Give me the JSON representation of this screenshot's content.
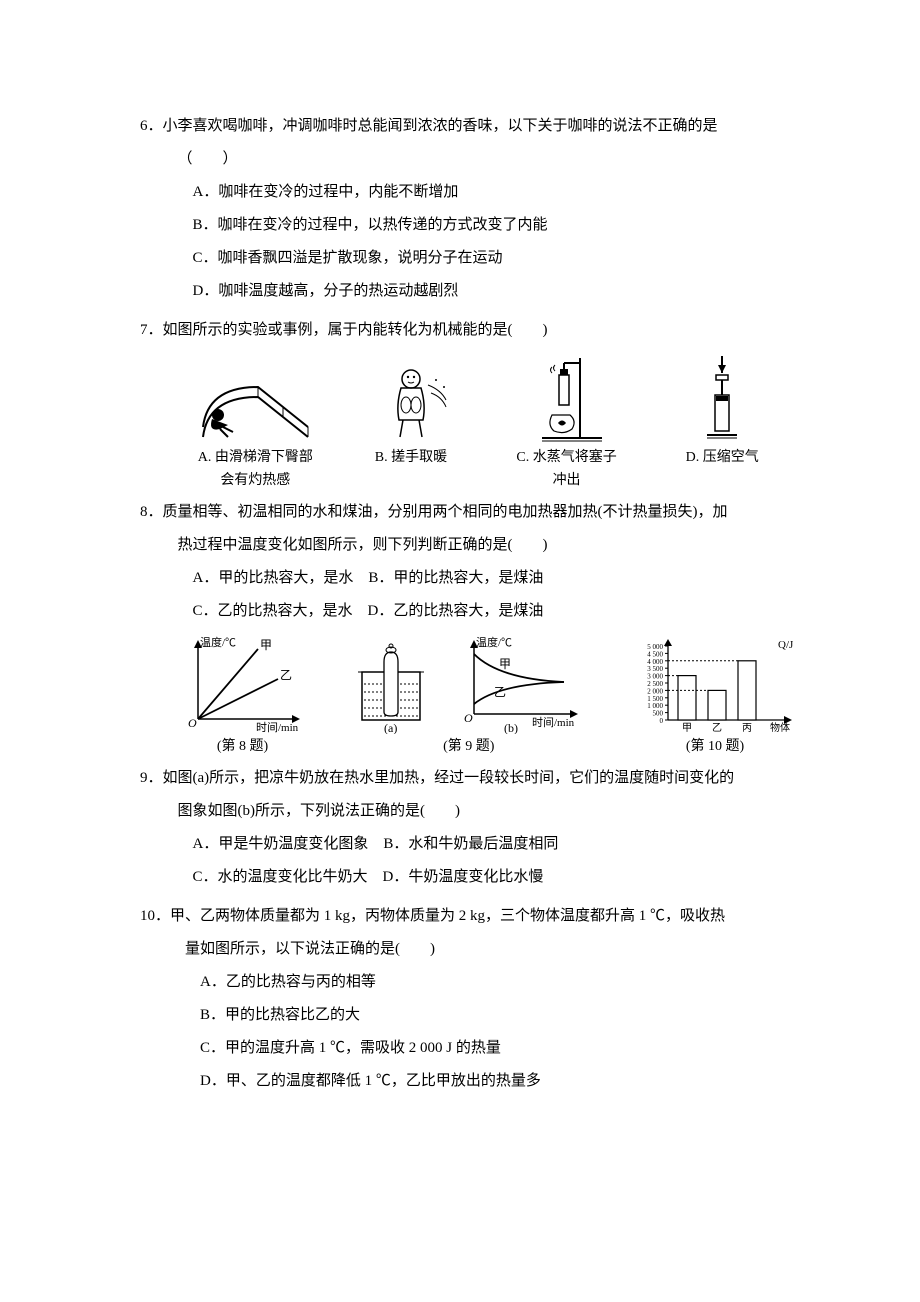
{
  "q6": {
    "num": "6．",
    "stem": "小李喜欢喝咖啡，冲调咖啡时总能闻到浓浓的香味，以下关于咖啡的说法不正确的是",
    "paren": "（　　）",
    "opts": [
      "A．咖啡在变冷的过程中，内能不断增加",
      "B．咖啡在变冷的过程中，以热传递的方式改变了内能",
      "C．咖啡香飘四溢是扩散现象，说明分子在运动",
      "D．咖啡温度越高，分子的热运动越剧烈"
    ]
  },
  "q7": {
    "num": "7．",
    "stem": "如图所示的实验或事例，属于内能转化为机械能的是(　　)",
    "figs": {
      "A": {
        "cap1": "A. 由滑梯滑下臀部",
        "cap2": "会有灼热感"
      },
      "B": {
        "cap": "B. 搓手取暖"
      },
      "C": {
        "cap1": "C. 水蒸气将塞子",
        "cap2": "冲出"
      },
      "D": {
        "cap": "D. 压缩空气"
      }
    }
  },
  "q8": {
    "num": "8．",
    "stem1": "质量相等、初温相同的水和煤油，分别用两个相同的电加热器加热(不计热量损失)，加",
    "stem2": "热过程中温度变化如图所示，则下列判断正确的是(　　)",
    "optsRow1": "A．甲的比热容大，是水　B．甲的比热容大，是煤油",
    "optsRow2": "C．乙的比热容大，是水　D．乙的比热容大，是煤油",
    "chart": {
      "ylabel": "温度/℃",
      "xlabel": "时间/min",
      "series1": "甲",
      "series2": "乙",
      "line_color": "#000000",
      "bg": "#ffffff"
    },
    "cap": "(第 8 题)"
  },
  "q9": {
    "num": "9．",
    "stem1": "如图(a)所示，把凉牛奶放在热水里加热，经过一段较长时间，它们的温度随时间变化的",
    "stem2": "图象如图(b)所示，下列说法正确的是(　　)",
    "optsRow1": "A．甲是牛奶温度变化图象　B．水和牛奶最后温度相同",
    "optsRow2": "C．水的温度变化比牛奶大　D．牛奶温度变化比水慢",
    "chartA": {
      "label": "(a)"
    },
    "chartB": {
      "ylabel": "温度/℃",
      "xlabel": "时间/min",
      "series1": "甲",
      "series2": "乙",
      "label": "(b)"
    },
    "cap": "(第 9 题)"
  },
  "q10": {
    "num": "10．",
    "stem1": "甲、乙两物体质量都为 1 kg，丙物体质量为 2 kg，三个物体温度都升高 1 ℃，吸收热",
    "stem2": "量如图所示，以下说法正确的是(　　)",
    "opts": [
      "A．乙的比热容与丙的相等",
      "B．甲的比热容比乙的大",
      "C．甲的温度升高 1 ℃，需吸收 2 000 J 的热量",
      "D．甲、乙的温度都降低 1 ℃，乙比甲放出的热量多"
    ],
    "chart": {
      "ylabel": "Q/J",
      "yticks": [
        "5 000",
        "4 500",
        "4 000",
        "3 500",
        "3 000",
        "2 500",
        "2 000",
        "1 500",
        "1 000",
        "500",
        "0"
      ],
      "cats": [
        "甲",
        "乙",
        "丙",
        "物体"
      ],
      "values": {
        "甲": 3000,
        "乙": 2000,
        "丙": 4000
      },
      "ymax": 5000,
      "bar_color": "#ffffff",
      "border": "#000000"
    },
    "cap": "(第 10 题)"
  }
}
